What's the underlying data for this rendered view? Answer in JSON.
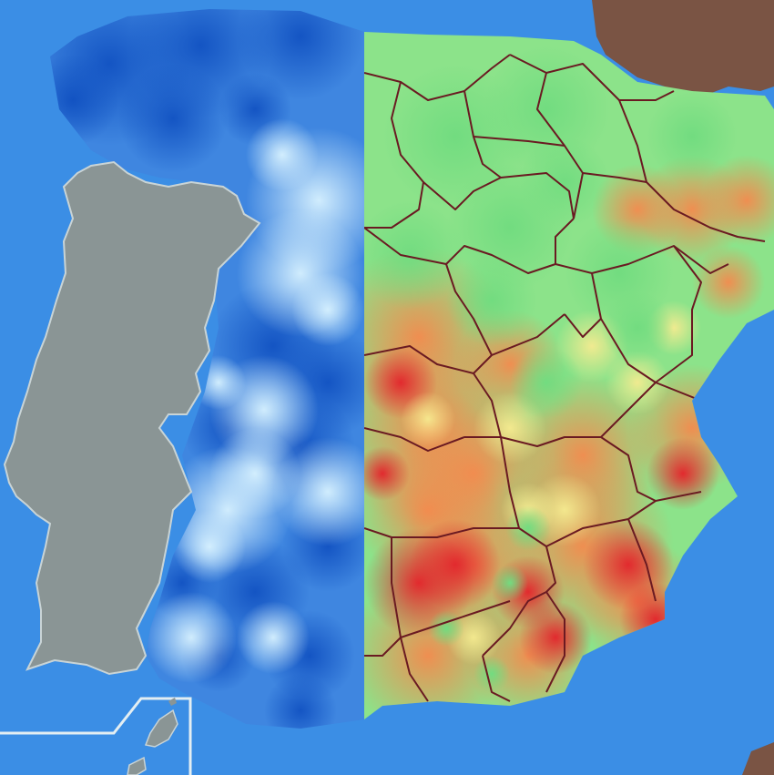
{
  "map": {
    "colors": {
      "sea": "#3b8ee5",
      "portugal_land": "#8a9595",
      "portugal_coast": "#c9d4d6",
      "france_land": "#7a5444",
      "africa_land": "#7a5444",
      "province_border": "#6a1a22",
      "inset_frame": "#e3eef2",
      "blue_dark": "#1a5cc8",
      "blue_mid": "#3f86e0",
      "blue_light": "#bfe6fa",
      "anomaly_green": "#7ee07e",
      "anomaly_yellow": "#f4e890",
      "anomaly_orange": "#f4954f",
      "anomaly_red": "#e8453c"
    },
    "regions": [
      {
        "name": "portugal",
        "icon": "grey-land-mass"
      },
      {
        "name": "spain-west-half",
        "icon": "blue-precipitation-gradient"
      },
      {
        "name": "spain-east-half",
        "icon": "green-to-red-anomaly-gradient"
      },
      {
        "name": "france",
        "icon": "brown-land-mass"
      },
      {
        "name": "north-africa",
        "icon": "brown-land-mass"
      },
      {
        "name": "canary-islands-inset",
        "icon": "inset-frame"
      }
    ]
  }
}
